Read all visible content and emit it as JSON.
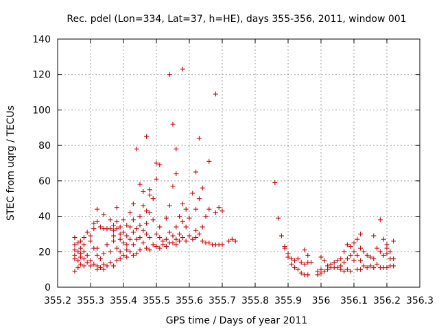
{
  "chart_data": {
    "type": "scatter",
    "title": "Rec. pdel (Lon=334, Lat=37, h=HE), days 355-356, 2011, window 001",
    "xlabel": "GPS time / Days of year 2011",
    "ylabel": "STEC from uqrg / TECUs",
    "xlim": [
      355.2,
      356.3
    ],
    "ylim": [
      0,
      140
    ],
    "xticks": [
      "355.2",
      "355.3",
      "355.4",
      "355.5",
      "355.6",
      "355.7",
      "355.8",
      "355.9",
      "356",
      "356.1",
      "356.2",
      "356.3"
    ],
    "yticks": [
      "0",
      "20",
      "40",
      "60",
      "80",
      "100",
      "120",
      "140"
    ],
    "grid": true,
    "marker": "plus",
    "color": "#cc0000",
    "points": [
      [
        355.252,
        28
      ],
      [
        355.252,
        24
      ],
      [
        355.252,
        21
      ],
      [
        355.252,
        18
      ],
      [
        355.252,
        16
      ],
      [
        355.252,
        9
      ],
      [
        355.262,
        25
      ],
      [
        355.262,
        20
      ],
      [
        355.262,
        15
      ],
      [
        355.262,
        11
      ],
      [
        355.27,
        26
      ],
      [
        355.27,
        22
      ],
      [
        355.27,
        19
      ],
      [
        355.27,
        17
      ],
      [
        355.27,
        13
      ],
      [
        355.28,
        28
      ],
      [
        355.28,
        24
      ],
      [
        355.28,
        20
      ],
      [
        355.28,
        16
      ],
      [
        355.28,
        12
      ],
      [
        355.29,
        31
      ],
      [
        355.29,
        18
      ],
      [
        355.29,
        14
      ],
      [
        355.3,
        29
      ],
      [
        355.3,
        26
      ],
      [
        355.3,
        15
      ],
      [
        355.3,
        12
      ],
      [
        355.31,
        36
      ],
      [
        355.31,
        33
      ],
      [
        355.31,
        22
      ],
      [
        355.31,
        13
      ],
      [
        355.32,
        44
      ],
      [
        355.32,
        37
      ],
      [
        355.32,
        22
      ],
      [
        355.32,
        18
      ],
      [
        355.32,
        12
      ],
      [
        355.32,
        10
      ],
      [
        355.33,
        34
      ],
      [
        355.33,
        16
      ],
      [
        355.33,
        11
      ],
      [
        355.34,
        41
      ],
      [
        355.34,
        33
      ],
      [
        355.34,
        19
      ],
      [
        355.34,
        13
      ],
      [
        355.34,
        10
      ],
      [
        355.35,
        33
      ],
      [
        355.35,
        24
      ],
      [
        355.35,
        12
      ],
      [
        355.36,
        38
      ],
      [
        355.36,
        33
      ],
      [
        355.36,
        20
      ],
      [
        355.36,
        14
      ],
      [
        355.37,
        35
      ],
      [
        355.37,
        32
      ],
      [
        355.37,
        29
      ],
      [
        355.37,
        26
      ],
      [
        355.37,
        12
      ],
      [
        355.38,
        45
      ],
      [
        355.38,
        37
      ],
      [
        355.38,
        33
      ],
      [
        355.38,
        22
      ],
      [
        355.38,
        15
      ],
      [
        355.39,
        34
      ],
      [
        355.39,
        30
      ],
      [
        355.39,
        27
      ],
      [
        355.39,
        20
      ],
      [
        355.39,
        16
      ],
      [
        355.4,
        38
      ],
      [
        355.4,
        31
      ],
      [
        355.4,
        25
      ],
      [
        355.4,
        18
      ],
      [
        355.41,
        35
      ],
      [
        355.41,
        29
      ],
      [
        355.41,
        24
      ],
      [
        355.41,
        21
      ],
      [
        355.41,
        17
      ],
      [
        355.42,
        42
      ],
      [
        355.42,
        34
      ],
      [
        355.42,
        27
      ],
      [
        355.42,
        20
      ],
      [
        355.43,
        47
      ],
      [
        355.43,
        38
      ],
      [
        355.43,
        31
      ],
      [
        355.43,
        24
      ],
      [
        355.43,
        18
      ],
      [
        355.44,
        78
      ],
      [
        355.44,
        33
      ],
      [
        355.44,
        27
      ],
      [
        355.44,
        19
      ],
      [
        355.45,
        58
      ],
      [
        355.45,
        40
      ],
      [
        355.45,
        35
      ],
      [
        355.45,
        28
      ],
      [
        355.45,
        21
      ],
      [
        355.46,
        54
      ],
      [
        355.46,
        46
      ],
      [
        355.46,
        32
      ],
      [
        355.46,
        25
      ],
      [
        355.47,
        85
      ],
      [
        355.47,
        43
      ],
      [
        355.47,
        36
      ],
      [
        355.47,
        30
      ],
      [
        355.47,
        22
      ],
      [
        355.48,
        55
      ],
      [
        355.48,
        52
      ],
      [
        355.48,
        42
      ],
      [
        355.48,
        28
      ],
      [
        355.48,
        21
      ],
      [
        355.49,
        50
      ],
      [
        355.49,
        38
      ],
      [
        355.49,
        24
      ],
      [
        355.5,
        70
      ],
      [
        355.5,
        61
      ],
      [
        355.5,
        30
      ],
      [
        355.5,
        23
      ],
      [
        355.51,
        69
      ],
      [
        355.51,
        34
      ],
      [
        355.51,
        28
      ],
      [
        355.51,
        22
      ],
      [
        355.52,
        26
      ],
      [
        355.52,
        24
      ],
      [
        355.53,
        39
      ],
      [
        355.53,
        27
      ],
      [
        355.53,
        23
      ],
      [
        355.54,
        120
      ],
      [
        355.54,
        46
      ],
      [
        355.54,
        31
      ],
      [
        355.54,
        25
      ],
      [
        355.55,
        92
      ],
      [
        355.55,
        57
      ],
      [
        355.55,
        29
      ],
      [
        355.55,
        25
      ],
      [
        355.56,
        78
      ],
      [
        355.56,
        64
      ],
      [
        355.56,
        34
      ],
      [
        355.56,
        27
      ],
      [
        355.56,
        24
      ],
      [
        355.57,
        40
      ],
      [
        355.57,
        30
      ],
      [
        355.57,
        26
      ],
      [
        355.58,
        123
      ],
      [
        355.58,
        47
      ],
      [
        355.58,
        37
      ],
      [
        355.58,
        28
      ],
      [
        355.59,
        44
      ],
      [
        355.59,
        34
      ],
      [
        355.59,
        26
      ],
      [
        355.6,
        39
      ],
      [
        355.6,
        29
      ],
      [
        355.61,
        53
      ],
      [
        355.61,
        27
      ],
      [
        355.62,
        65
      ],
      [
        355.62,
        44
      ],
      [
        355.62,
        32
      ],
      [
        355.62,
        28
      ],
      [
        355.63,
        84
      ],
      [
        355.63,
        50
      ],
      [
        355.63,
        30
      ],
      [
        355.64,
        56
      ],
      [
        355.64,
        34
      ],
      [
        355.64,
        26
      ],
      [
        355.65,
        40
      ],
      [
        355.65,
        25
      ],
      [
        355.66,
        71
      ],
      [
        355.66,
        44
      ],
      [
        355.66,
        25
      ],
      [
        355.67,
        24
      ],
      [
        355.68,
        109
      ],
      [
        355.68,
        42
      ],
      [
        355.68,
        24
      ],
      [
        355.69,
        45
      ],
      [
        355.69,
        24
      ],
      [
        355.7,
        43
      ],
      [
        355.7,
        24
      ],
      [
        355.72,
        26
      ],
      [
        355.73,
        27
      ],
      [
        355.74,
        26
      ],
      [
        355.86,
        59
      ],
      [
        355.87,
        39
      ],
      [
        355.88,
        29
      ],
      [
        355.89,
        23
      ],
      [
        355.89,
        22
      ],
      [
        355.9,
        19
      ],
      [
        355.9,
        17
      ],
      [
        355.91,
        16
      ],
      [
        355.91,
        13
      ],
      [
        355.92,
        15
      ],
      [
        355.92,
        11
      ],
      [
        355.93,
        16
      ],
      [
        355.93,
        10
      ],
      [
        355.94,
        14
      ],
      [
        355.94,
        8
      ],
      [
        355.95,
        21
      ],
      [
        355.95,
        13
      ],
      [
        355.95,
        7
      ],
      [
        355.96,
        18
      ],
      [
        355.96,
        14
      ],
      [
        355.96,
        7
      ],
      [
        355.97,
        14
      ],
      [
        355.99,
        9
      ],
      [
        355.99,
        7
      ],
      [
        356.0,
        17
      ],
      [
        356.0,
        10
      ],
      [
        356.0,
        8
      ],
      [
        356.01,
        15
      ],
      [
        356.01,
        9
      ],
      [
        356.02,
        12
      ],
      [
        356.02,
        10
      ],
      [
        356.03,
        13
      ],
      [
        356.03,
        11
      ],
      [
        356.04,
        14
      ],
      [
        356.04,
        11
      ],
      [
        356.05,
        15
      ],
      [
        356.05,
        11
      ],
      [
        356.06,
        16
      ],
      [
        356.06,
        12
      ],
      [
        356.06,
        10
      ],
      [
        356.07,
        20
      ],
      [
        356.07,
        14
      ],
      [
        356.07,
        9
      ],
      [
        356.08,
        24
      ],
      [
        356.08,
        16
      ],
      [
        356.08,
        10
      ],
      [
        356.09,
        23
      ],
      [
        356.09,
        18
      ],
      [
        356.09,
        9
      ],
      [
        356.1,
        25
      ],
      [
        356.1,
        20
      ],
      [
        356.1,
        15
      ],
      [
        356.11,
        27
      ],
      [
        356.11,
        18
      ],
      [
        356.11,
        10
      ],
      [
        356.12,
        30
      ],
      [
        356.12,
        22
      ],
      [
        356.12,
        15
      ],
      [
        356.12,
        10
      ],
      [
        356.13,
        20
      ],
      [
        356.13,
        12
      ],
      [
        356.14,
        18
      ],
      [
        356.14,
        11
      ],
      [
        356.15,
        17
      ],
      [
        356.15,
        12
      ],
      [
        356.16,
        29
      ],
      [
        356.16,
        16
      ],
      [
        356.16,
        11
      ],
      [
        356.17,
        22
      ],
      [
        356.17,
        13
      ],
      [
        356.18,
        38
      ],
      [
        356.18,
        20
      ],
      [
        356.18,
        11
      ],
      [
        356.19,
        27
      ],
      [
        356.19,
        18
      ],
      [
        356.19,
        11
      ],
      [
        356.2,
        24
      ],
      [
        356.2,
        22
      ],
      [
        356.2,
        19
      ],
      [
        356.2,
        11
      ],
      [
        356.21,
        20
      ],
      [
        356.21,
        16
      ],
      [
        356.21,
        12
      ],
      [
        356.22,
        26
      ],
      [
        356.22,
        16
      ],
      [
        356.22,
        12
      ]
    ]
  }
}
